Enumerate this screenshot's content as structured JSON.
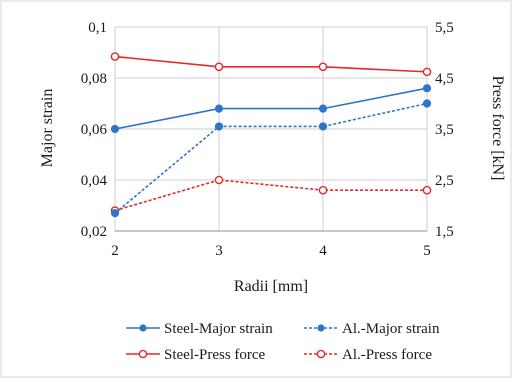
{
  "chart_data": {
    "type": "line",
    "x": [
      2,
      3,
      4,
      5
    ],
    "xlabel": "Radii [mm]",
    "ylabel_left": "Major strain",
    "ylabel_right": "Press force [kN]",
    "xlim": [
      2,
      5
    ],
    "ylim_left": [
      0.02,
      0.1
    ],
    "ylim_right": [
      1.5,
      5.5
    ],
    "x_ticks": [
      "2",
      "3",
      "4",
      "5"
    ],
    "y_left_ticks": [
      "0,02",
      "0,04",
      "0,06",
      "0,08",
      "0,1"
    ],
    "y_right_ticks": [
      "1,5",
      "2,5",
      "3,5",
      "4,5",
      "5,5"
    ],
    "grid": true,
    "legend_position": "bottom",
    "series": [
      {
        "name": "Steel-Major strain",
        "axis": "left",
        "color": "#2e75c9",
        "dashed": false,
        "marker": "filled-circle",
        "values": [
          0.06,
          0.068,
          0.068,
          0.076
        ]
      },
      {
        "name": "Al.-Major strain",
        "axis": "left",
        "color": "#2e75c9",
        "dashed": true,
        "marker": "filled-circle",
        "values": [
          0.027,
          0.061,
          0.061,
          0.07
        ]
      },
      {
        "name": "Steel-Press force",
        "axis": "right",
        "color": "#e8272a",
        "dashed": false,
        "marker": "open-circle",
        "values": [
          4.92,
          4.72,
          4.72,
          4.62
        ]
      },
      {
        "name": "Al.-Press force",
        "axis": "right",
        "color": "#e8272a",
        "dashed": true,
        "marker": "open-circle",
        "values": [
          1.9,
          2.5,
          2.3,
          2.3
        ]
      }
    ]
  }
}
